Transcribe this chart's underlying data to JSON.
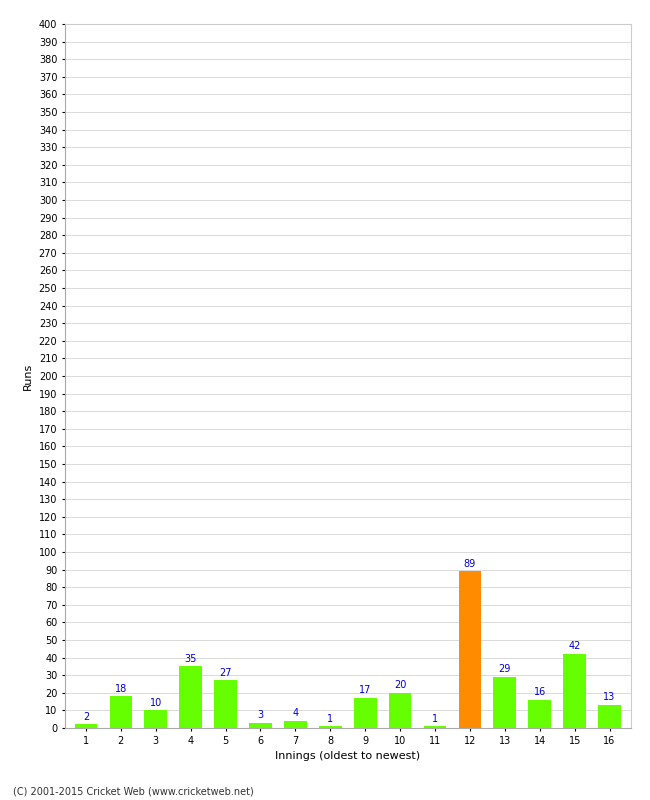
{
  "title": "",
  "xlabel": "Innings (oldest to newest)",
  "ylabel": "Runs",
  "values": [
    2,
    18,
    10,
    35,
    27,
    3,
    4,
    1,
    17,
    20,
    1,
    89,
    29,
    16,
    42,
    13
  ],
  "categories": [
    "1",
    "2",
    "3",
    "4",
    "5",
    "6",
    "7",
    "8",
    "9",
    "10",
    "11",
    "12",
    "13",
    "14",
    "15",
    "16"
  ],
  "bar_colors": [
    "#66ff00",
    "#66ff00",
    "#66ff00",
    "#66ff00",
    "#66ff00",
    "#66ff00",
    "#66ff00",
    "#66ff00",
    "#66ff00",
    "#66ff00",
    "#66ff00",
    "#ff8c00",
    "#66ff00",
    "#66ff00",
    "#66ff00",
    "#66ff00"
  ],
  "label_color": "#0000cc",
  "ylim": [
    0,
    400
  ],
  "background_color": "#ffffff",
  "grid_color": "#cccccc",
  "footer": "(C) 2001-2015 Cricket Web (www.cricketweb.net)",
  "bar_width": 0.65,
  "label_fontsize": 7,
  "tick_fontsize": 7,
  "axis_label_fontsize": 8
}
